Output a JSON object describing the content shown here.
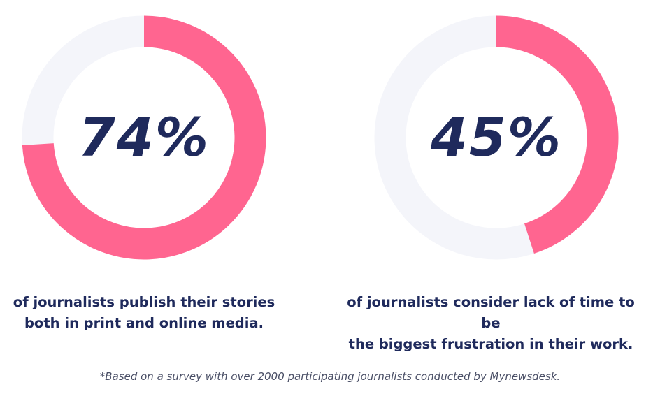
{
  "chart_data": [
    {
      "type": "pie",
      "values": [
        74
      ],
      "max": 100,
      "value_label": "74%",
      "caption_lines": [
        "of journalists publish their stories",
        "both in print and online media."
      ],
      "colors": {
        "filled": "#ff6590",
        "track": "#f4f5fa"
      }
    },
    {
      "type": "pie",
      "values": [
        45
      ],
      "max": 100,
      "value_label": "45%",
      "caption_lines": [
        "of journalists consider lack of time to be",
        "the biggest frustration in their work."
      ],
      "colors": {
        "filled": "#ff6590",
        "track": "#f4f5fa"
      }
    }
  ],
  "footnote": "*Based on a survey with over 2000 participating journalists conducted by Mynewsdesk."
}
